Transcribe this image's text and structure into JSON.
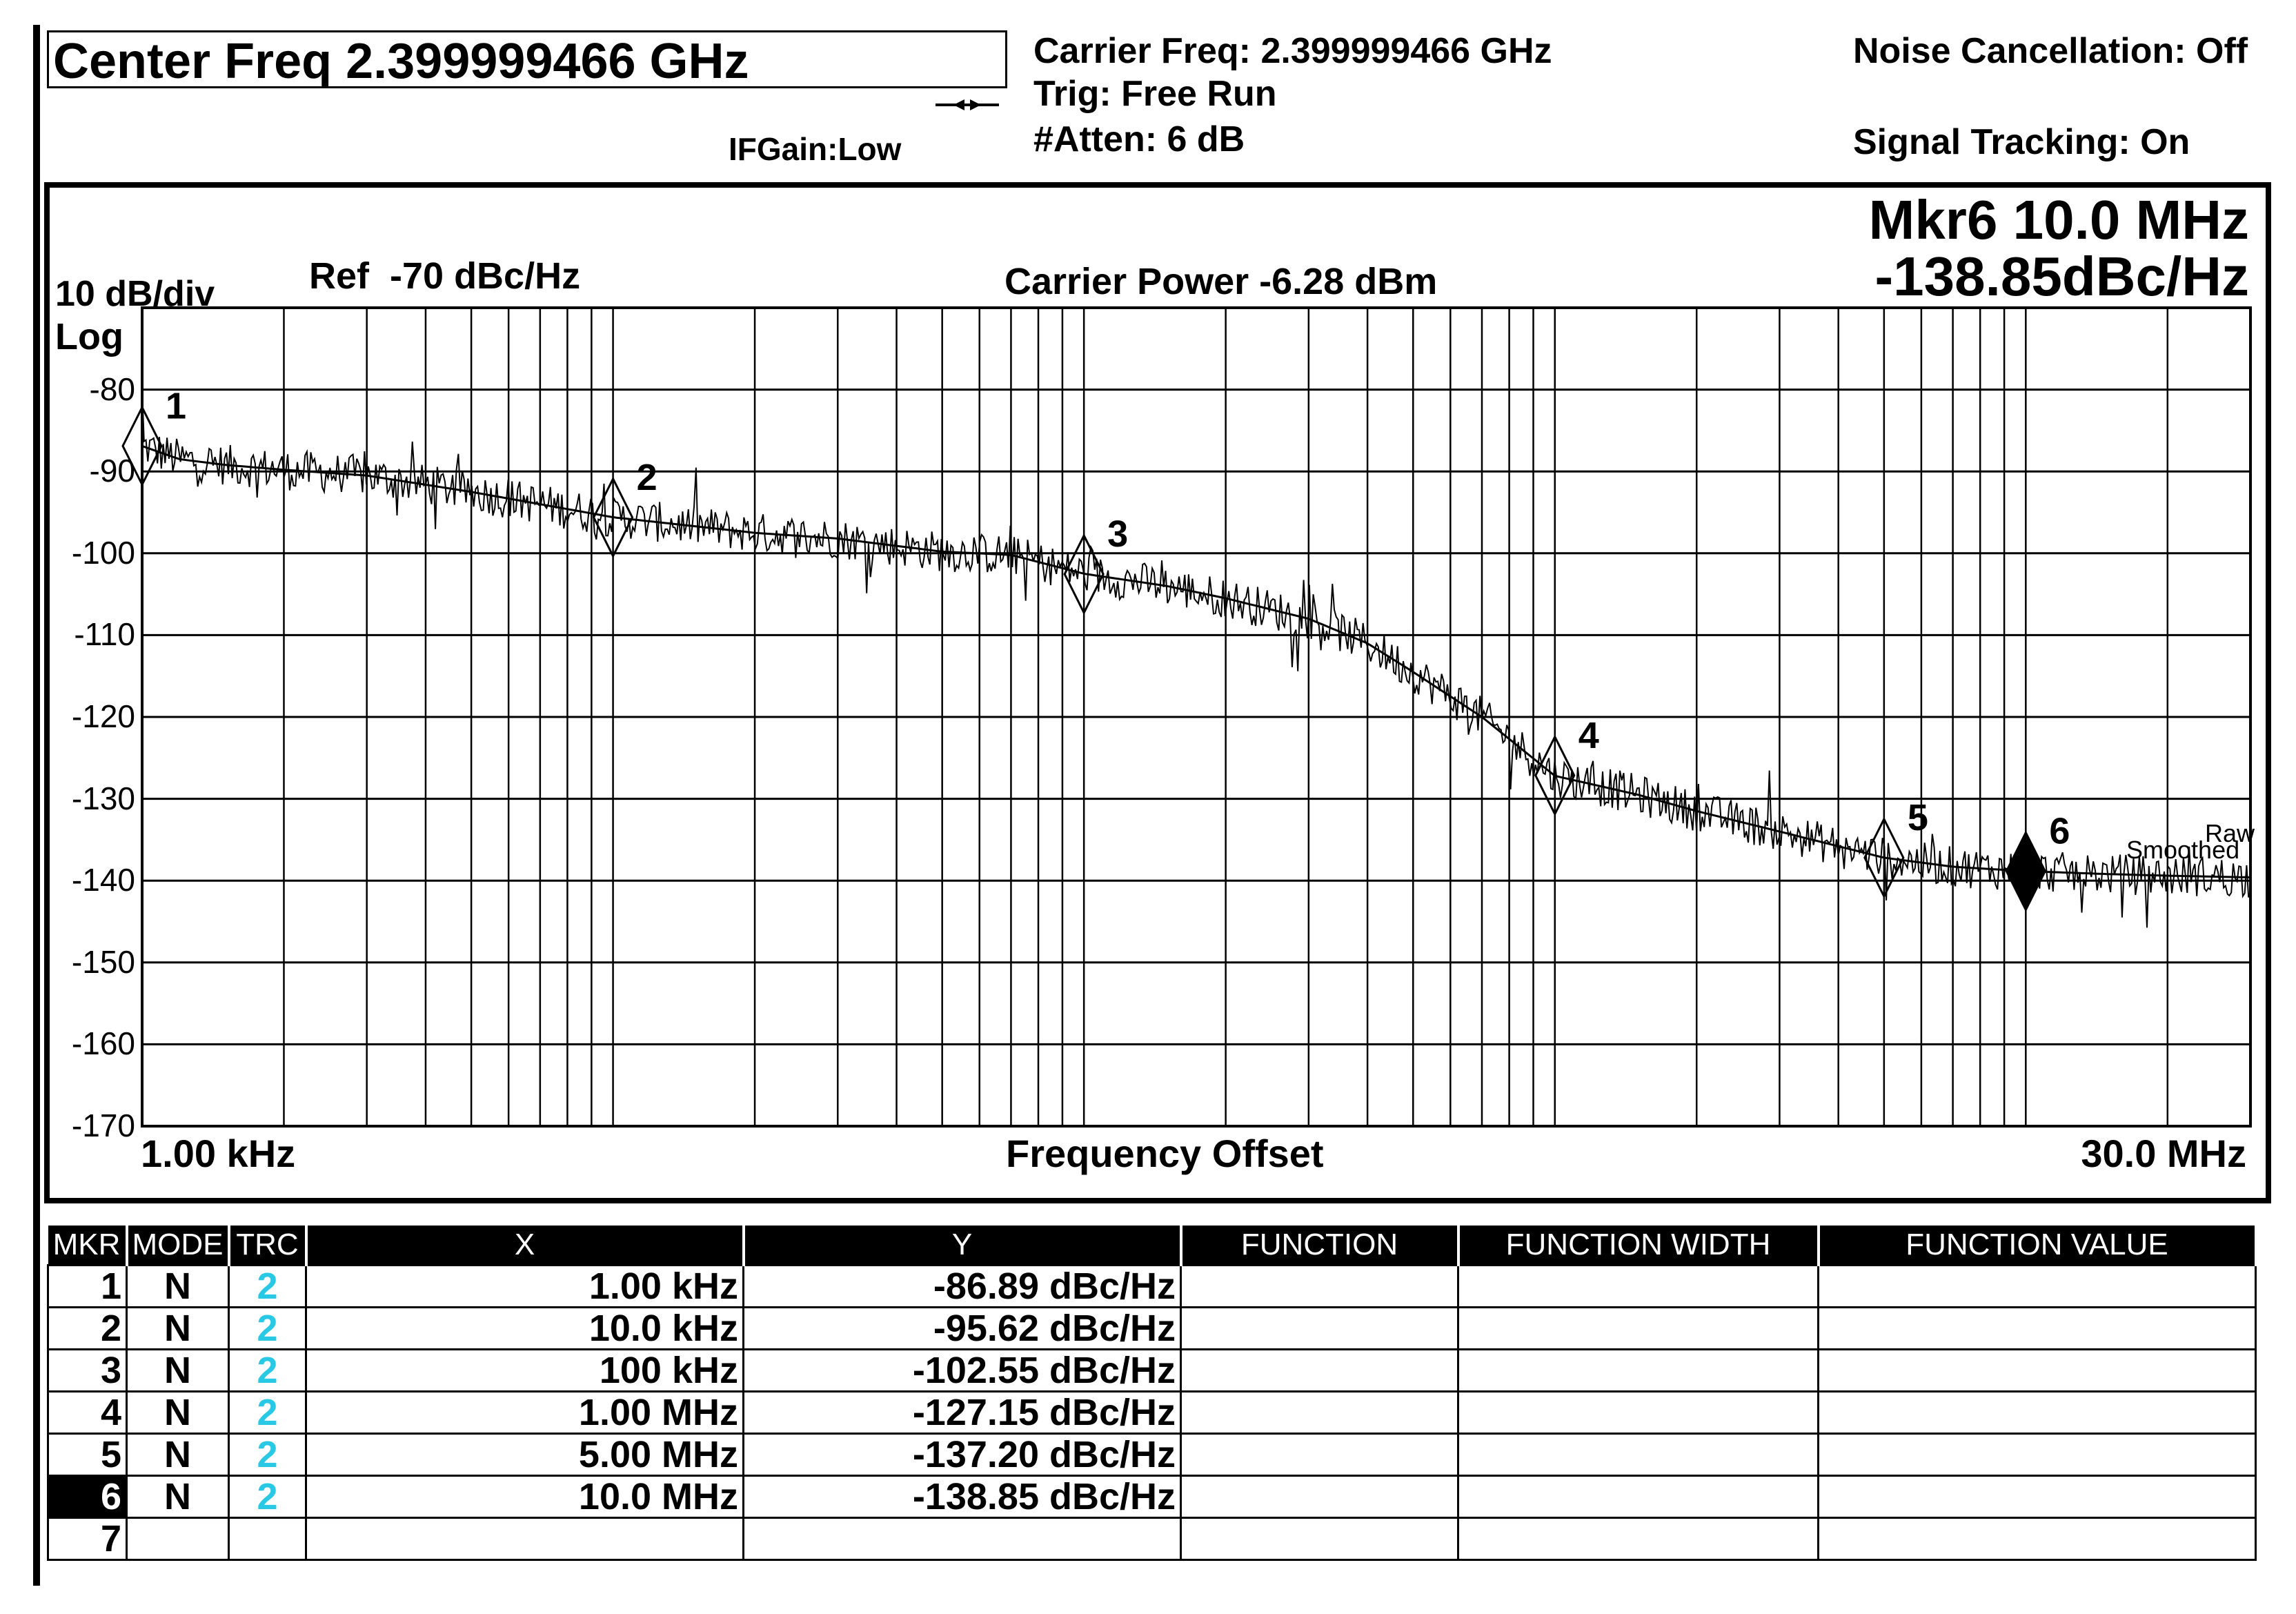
{
  "header": {
    "center_freq": "Center Freq 2.399999466 GHz",
    "ifgain": "IFGain:Low",
    "carrier_freq": "Carrier Freq: 2.399999466 GHz",
    "trig": "Trig: Free Run",
    "atten": "#Atten: 6 dB",
    "noise_cancel": "Noise Cancellation: Off",
    "signal_tracking": "Signal Tracking: On"
  },
  "screen": {
    "scale": "10 dB/div",
    "scale_type": "Log",
    "ref": "Ref  -70 dBc/Hz",
    "carrier_power": "Carrier Power -6.28 dBm",
    "marker_name": "Mkr6 10.0 MHz",
    "marker_value": "-138.85dBc/Hz",
    "x_start": "1.00 kHz",
    "x_label": "Frequency Offset",
    "x_stop": "30.0 MHz",
    "trace_raw": "Raw",
    "trace_smoothed": "Smoothed"
  },
  "chart_data": {
    "type": "line",
    "title": "",
    "xlabel": "Frequency Offset",
    "ylabel": "",
    "x_scale": "log",
    "xlim_hz": [
      1000,
      30000000
    ],
    "ylim": [
      -170,
      -70
    ],
    "grid": true,
    "y_ticks": [
      "-80",
      "-90",
      "-100",
      "-110",
      "-120",
      "-130",
      "-140",
      "-150",
      "-160",
      "-170"
    ],
    "series": [
      {
        "name": "Smoothed",
        "x_hz": [
          1000,
          1200,
          1500,
          2000,
          3000,
          5000,
          7000,
          10000,
          20000,
          30000,
          50000,
          70000,
          100000,
          150000,
          200000,
          300000,
          400000,
          500000,
          700000,
          1000000,
          1500000,
          2000000,
          3000000,
          5000000,
          7000000,
          10000000,
          15000000,
          20000000,
          30000000
        ],
        "values": [
          -86.9,
          -88.5,
          -89.2,
          -89.8,
          -90.5,
          -92.5,
          -94.0,
          -95.6,
          -97.5,
          -98.2,
          -99.8,
          -100.2,
          -102.5,
          -104.0,
          -105.5,
          -108.0,
          -111.0,
          -114.5,
          -120.0,
          -127.2,
          -129.5,
          -131.5,
          -134.0,
          -137.2,
          -138.3,
          -138.85,
          -139.2,
          -139.4,
          -139.6
        ]
      },
      {
        "name": "Raw",
        "x_hz": [
          1000,
          30000000
        ],
        "values": [
          -86.9,
          -139.6
        ]
      }
    ],
    "markers": [
      {
        "id": 1,
        "x_hz": 1000,
        "y": -86.89
      },
      {
        "id": 2,
        "x_hz": 10000,
        "y": -95.62
      },
      {
        "id": 3,
        "x_hz": 100000,
        "y": -102.55
      },
      {
        "id": 4,
        "x_hz": 1000000,
        "y": -127.15
      },
      {
        "id": 5,
        "x_hz": 5000000,
        "y": -137.2
      },
      {
        "id": 6,
        "x_hz": 10000000,
        "y": -138.85,
        "active": true
      }
    ]
  },
  "table": {
    "columns": [
      "MKR",
      "MODE",
      "TRC",
      "X",
      "Y",
      "FUNCTION",
      "FUNCTION WIDTH",
      "FUNCTION VALUE"
    ],
    "rows": [
      {
        "mkr": "1",
        "mode": "N",
        "trc": "2",
        "x": "1.00 kHz",
        "y": "-86.89 dBc/Hz"
      },
      {
        "mkr": "2",
        "mode": "N",
        "trc": "2",
        "x": "10.0 kHz",
        "y": "-95.62 dBc/Hz"
      },
      {
        "mkr": "3",
        "mode": "N",
        "trc": "2",
        "x": "100 kHz",
        "y": "-102.55 dBc/Hz"
      },
      {
        "mkr": "4",
        "mode": "N",
        "trc": "2",
        "x": "1.00 MHz",
        "y": "-127.15 dBc/Hz"
      },
      {
        "mkr": "5",
        "mode": "N",
        "trc": "2",
        "x": "5.00 MHz",
        "y": "-137.20 dBc/Hz"
      },
      {
        "mkr": "6",
        "mode": "N",
        "trc": "2",
        "x": "10.0 MHz",
        "y": "-138.85 dBc/Hz"
      },
      {
        "mkr": "7",
        "mode": "",
        "trc": "",
        "x": "",
        "y": ""
      }
    ]
  }
}
